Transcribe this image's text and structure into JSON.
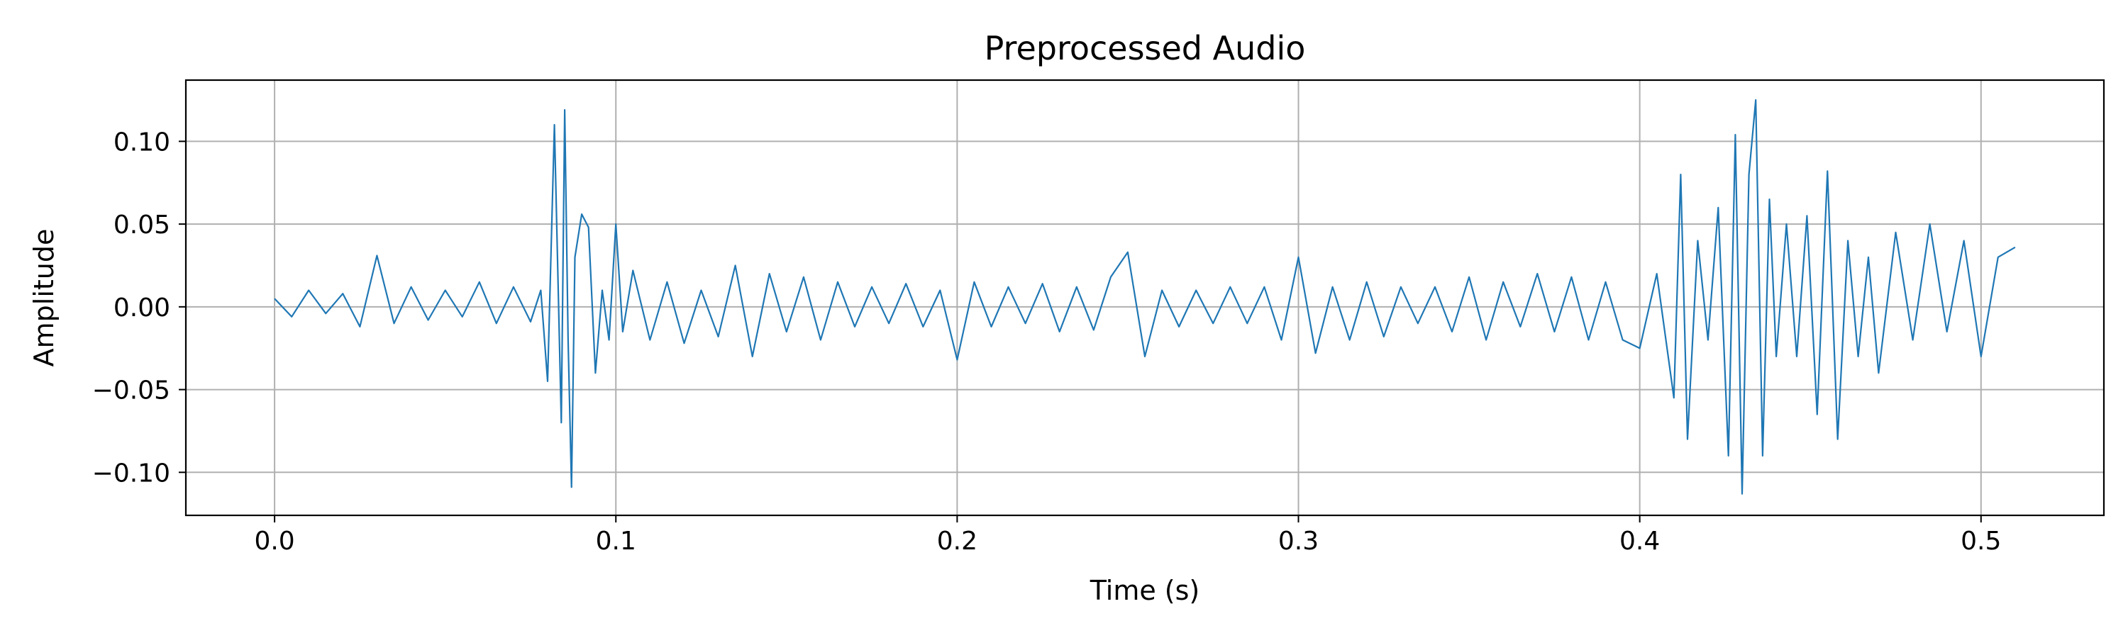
{
  "chart_data": {
    "type": "line",
    "title": "Preprocessed Audio",
    "xlabel": "Time (s)",
    "ylabel": "Amplitude",
    "xlim": [
      -0.026,
      0.536
    ],
    "ylim": [
      -0.126,
      0.137
    ],
    "xticks": [
      0.0,
      0.1,
      0.2,
      0.3,
      0.4,
      0.5
    ],
    "xtick_labels": [
      "0.0",
      "0.1",
      "0.2",
      "0.3",
      "0.4",
      "0.5"
    ],
    "yticks": [
      -0.1,
      -0.05,
      0.0,
      0.05,
      0.1
    ],
    "ytick_labels": [
      "−0.10",
      "−0.05",
      "0.00",
      "0.05",
      "0.10"
    ],
    "grid": true,
    "line_color": "#1f77b4",
    "series": [
      {
        "x": [
          0.0,
          0.005,
          0.01,
          0.015,
          0.02,
          0.025,
          0.03,
          0.035,
          0.04,
          0.045,
          0.05,
          0.055,
          0.06,
          0.065,
          0.07,
          0.075,
          0.078,
          0.08,
          0.082,
          0.084,
          0.085,
          0.086,
          0.087,
          0.088,
          0.09,
          0.092,
          0.094,
          0.096,
          0.098,
          0.1,
          0.102,
          0.105,
          0.11,
          0.115,
          0.12,
          0.125,
          0.13,
          0.135,
          0.14,
          0.145,
          0.15,
          0.155,
          0.16,
          0.165,
          0.17,
          0.175,
          0.18,
          0.185,
          0.19,
          0.195,
          0.2,
          0.205,
          0.21,
          0.215,
          0.22,
          0.225,
          0.23,
          0.235,
          0.24,
          0.245,
          0.25,
          0.255,
          0.26,
          0.265,
          0.27,
          0.275,
          0.28,
          0.285,
          0.29,
          0.295,
          0.3,
          0.305,
          0.31,
          0.315,
          0.32,
          0.325,
          0.33,
          0.335,
          0.34,
          0.345,
          0.35,
          0.355,
          0.36,
          0.365,
          0.37,
          0.375,
          0.38,
          0.385,
          0.39,
          0.395,
          0.4,
          0.405,
          0.41,
          0.412,
          0.414,
          0.417,
          0.42,
          0.423,
          0.426,
          0.428,
          0.43,
          0.432,
          0.434,
          0.436,
          0.438,
          0.44,
          0.443,
          0.446,
          0.449,
          0.452,
          0.455,
          0.458,
          0.461,
          0.464,
          0.467,
          0.47,
          0.475,
          0.48,
          0.485,
          0.49,
          0.495,
          0.5,
          0.505,
          0.51
        ],
        "y": [
          0.005,
          -0.006,
          0.01,
          -0.004,
          0.008,
          -0.012,
          0.031,
          -0.01,
          0.012,
          -0.008,
          0.01,
          -0.006,
          0.015,
          -0.01,
          0.012,
          -0.009,
          0.01,
          -0.045,
          0.11,
          -0.07,
          0.119,
          -0.02,
          -0.109,
          0.03,
          0.056,
          0.048,
          -0.04,
          0.01,
          -0.02,
          0.05,
          -0.015,
          0.022,
          -0.02,
          0.015,
          -0.022,
          0.01,
          -0.018,
          0.025,
          -0.03,
          0.02,
          -0.015,
          0.018,
          -0.02,
          0.015,
          -0.012,
          0.012,
          -0.01,
          0.014,
          -0.012,
          0.01,
          -0.032,
          0.015,
          -0.012,
          0.012,
          -0.01,
          0.014,
          -0.015,
          0.012,
          -0.014,
          0.018,
          0.033,
          -0.03,
          0.01,
          -0.012,
          0.01,
          -0.01,
          0.012,
          -0.01,
          0.012,
          -0.02,
          0.03,
          -0.028,
          0.012,
          -0.02,
          0.015,
          -0.018,
          0.012,
          -0.01,
          0.012,
          -0.015,
          0.018,
          -0.02,
          0.015,
          -0.012,
          0.02,
          -0.015,
          0.018,
          -0.02,
          0.015,
          -0.02,
          -0.025,
          0.02,
          -0.055,
          0.08,
          -0.08,
          0.04,
          -0.02,
          0.06,
          -0.09,
          0.104,
          -0.113,
          0.08,
          0.125,
          -0.09,
          0.065,
          -0.03,
          0.05,
          -0.03,
          0.055,
          -0.065,
          0.082,
          -0.08,
          0.04,
          -0.03,
          0.03,
          -0.04,
          0.045,
          -0.02,
          0.05,
          -0.015,
          0.04,
          -0.03,
          0.03,
          0.036
        ]
      }
    ]
  }
}
